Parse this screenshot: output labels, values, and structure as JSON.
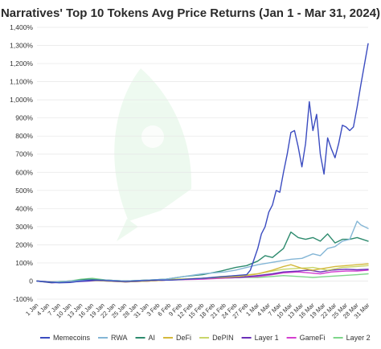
{
  "chart_data": {
    "type": "line",
    "title": "Narratives' Top 10 Tokens Avg Price Returns (Jan 1 - Mar 31, 2024)",
    "xlabel": "",
    "ylabel": "",
    "ylim": [
      -100,
      1400
    ],
    "yticks": [
      -100,
      0,
      100,
      200,
      300,
      400,
      500,
      600,
      700,
      800,
      900,
      1000,
      1100,
      1200,
      1300,
      1400
    ],
    "ytick_labels": [
      "-100%",
      "0",
      "100%",
      "200%",
      "300%",
      "400%",
      "500%",
      "600%",
      "700%",
      "800%",
      "900%",
      "1,000%",
      "1,100%",
      "1,200%",
      "1,300%",
      "1,400%"
    ],
    "x_range": [
      "2024-01-01",
      "2024-03-31"
    ],
    "xticks": [
      "2024-01-01",
      "2024-01-04",
      "2024-01-07",
      "2024-01-10",
      "2024-01-13",
      "2024-01-16",
      "2024-01-19",
      "2024-01-22",
      "2024-01-25",
      "2024-01-28",
      "2024-01-31",
      "2024-02-03",
      "2024-02-06",
      "2024-02-09",
      "2024-02-12",
      "2024-02-15",
      "2024-02-18",
      "2024-02-21",
      "2024-02-24",
      "2024-02-27",
      "2024-03-01",
      "2024-03-04",
      "2024-03-07",
      "2024-03-10",
      "2024-03-13",
      "2024-03-16",
      "2024-03-19",
      "2024-03-22",
      "2024-03-25",
      "2024-03-28",
      "2024-03-31"
    ],
    "xtick_labels": [
      "1 Jan",
      "4 Jan",
      "7 Jan",
      "10 Jan",
      "13 Jan",
      "16 Jan",
      "19 Jan",
      "22 Jan",
      "25 Jan",
      "28 Jan",
      "31 Jan",
      "3 Feb",
      "6 Feb",
      "9 Feb",
      "12 Feb",
      "15 Feb",
      "18 Feb",
      "21 Feb",
      "24 Feb",
      "27 Feb",
      "1 Mar",
      "4 Mar",
      "7 Mar",
      "10 Mar",
      "13 Mar",
      "16 Mar",
      "19 Mar",
      "22 Mar",
      "25 Mar",
      "28 Mar",
      "31 Mar"
    ],
    "grid": true,
    "legend_position": "bottom",
    "series": [
      {
        "name": "Memecoins",
        "color": "#3b4cc0",
        "points": [
          [
            "2024-01-01",
            0
          ],
          [
            "2024-01-04",
            -5
          ],
          [
            "2024-01-07",
            -10
          ],
          [
            "2024-01-10",
            -8
          ],
          [
            "2024-01-13",
            0
          ],
          [
            "2024-01-16",
            5
          ],
          [
            "2024-01-19",
            3
          ],
          [
            "2024-01-22",
            0
          ],
          [
            "2024-01-25",
            -3
          ],
          [
            "2024-01-28",
            0
          ],
          [
            "2024-01-31",
            3
          ],
          [
            "2024-02-03",
            5
          ],
          [
            "2024-02-06",
            5
          ],
          [
            "2024-02-09",
            8
          ],
          [
            "2024-02-12",
            12
          ],
          [
            "2024-02-15",
            15
          ],
          [
            "2024-02-18",
            20
          ],
          [
            "2024-02-21",
            25
          ],
          [
            "2024-02-24",
            30
          ],
          [
            "2024-02-27",
            35
          ],
          [
            "2024-02-28",
            60
          ],
          [
            "2024-02-29",
            120
          ],
          [
            "2024-03-01",
            180
          ],
          [
            "2024-03-02",
            260
          ],
          [
            "2024-03-03",
            300
          ],
          [
            "2024-03-04",
            380
          ],
          [
            "2024-03-05",
            420
          ],
          [
            "2024-03-06",
            500
          ],
          [
            "2024-03-07",
            490
          ],
          [
            "2024-03-08",
            600
          ],
          [
            "2024-03-09",
            700
          ],
          [
            "2024-03-10",
            820
          ],
          [
            "2024-03-11",
            830
          ],
          [
            "2024-03-12",
            740
          ],
          [
            "2024-03-13",
            630
          ],
          [
            "2024-03-14",
            760
          ],
          [
            "2024-03-15",
            990
          ],
          [
            "2024-03-16",
            830
          ],
          [
            "2024-03-17",
            920
          ],
          [
            "2024-03-18",
            700
          ],
          [
            "2024-03-19",
            590
          ],
          [
            "2024-03-20",
            790
          ],
          [
            "2024-03-21",
            730
          ],
          [
            "2024-03-22",
            680
          ],
          [
            "2024-03-23",
            760
          ],
          [
            "2024-03-24",
            860
          ],
          [
            "2024-03-25",
            850
          ],
          [
            "2024-03-26",
            830
          ],
          [
            "2024-03-27",
            850
          ],
          [
            "2024-03-28",
            960
          ],
          [
            "2024-03-29",
            1080
          ],
          [
            "2024-03-31",
            1310
          ]
        ]
      },
      {
        "name": "RWA",
        "color": "#84b6d6",
        "points": [
          [
            "2024-01-01",
            0
          ],
          [
            "2024-01-05",
            -5
          ],
          [
            "2024-01-10",
            0
          ],
          [
            "2024-01-15",
            5
          ],
          [
            "2024-01-20",
            5
          ],
          [
            "2024-01-25",
            0
          ],
          [
            "2024-01-31",
            5
          ],
          [
            "2024-02-05",
            10
          ],
          [
            "2024-02-10",
            25
          ],
          [
            "2024-02-15",
            40
          ],
          [
            "2024-02-18",
            45
          ],
          [
            "2024-02-21",
            50
          ],
          [
            "2024-02-24",
            60
          ],
          [
            "2024-02-27",
            75
          ],
          [
            "2024-03-01",
            90
          ],
          [
            "2024-03-04",
            100
          ],
          [
            "2024-03-07",
            110
          ],
          [
            "2024-03-10",
            120
          ],
          [
            "2024-03-13",
            125
          ],
          [
            "2024-03-16",
            150
          ],
          [
            "2024-03-18",
            140
          ],
          [
            "2024-03-20",
            180
          ],
          [
            "2024-03-22",
            190
          ],
          [
            "2024-03-24",
            220
          ],
          [
            "2024-03-26",
            230
          ],
          [
            "2024-03-28",
            330
          ],
          [
            "2024-03-29",
            310
          ],
          [
            "2024-03-31",
            290
          ]
        ]
      },
      {
        "name": "AI",
        "color": "#2e8b6e",
        "points": [
          [
            "2024-01-01",
            0
          ],
          [
            "2024-01-05",
            -8
          ],
          [
            "2024-01-10",
            0
          ],
          [
            "2024-01-15",
            10
          ],
          [
            "2024-01-20",
            5
          ],
          [
            "2024-01-25",
            0
          ],
          [
            "2024-01-31",
            5
          ],
          [
            "2024-02-05",
            10
          ],
          [
            "2024-02-10",
            25
          ],
          [
            "2024-02-15",
            35
          ],
          [
            "2024-02-20",
            55
          ],
          [
            "2024-02-24",
            75
          ],
          [
            "2024-02-27",
            85
          ],
          [
            "2024-03-01",
            110
          ],
          [
            "2024-03-03",
            140
          ],
          [
            "2024-03-05",
            130
          ],
          [
            "2024-03-08",
            180
          ],
          [
            "2024-03-10",
            270
          ],
          [
            "2024-03-12",
            240
          ],
          [
            "2024-03-14",
            230
          ],
          [
            "2024-03-16",
            240
          ],
          [
            "2024-03-18",
            220
          ],
          [
            "2024-03-20",
            260
          ],
          [
            "2024-03-22",
            210
          ],
          [
            "2024-03-24",
            230
          ],
          [
            "2024-03-26",
            230
          ],
          [
            "2024-03-28",
            240
          ],
          [
            "2024-03-31",
            220
          ]
        ]
      },
      {
        "name": "DeFi",
        "color": "#d4b93c",
        "points": [
          [
            "2024-01-01",
            0
          ],
          [
            "2024-01-05",
            -5
          ],
          [
            "2024-01-10",
            0
          ],
          [
            "2024-01-15",
            5
          ],
          [
            "2024-01-20",
            0
          ],
          [
            "2024-01-25",
            -5
          ],
          [
            "2024-01-31",
            0
          ],
          [
            "2024-02-05",
            5
          ],
          [
            "2024-02-10",
            10
          ],
          [
            "2024-02-15",
            15
          ],
          [
            "2024-02-20",
            20
          ],
          [
            "2024-02-25",
            25
          ],
          [
            "2024-03-01",
            40
          ],
          [
            "2024-03-05",
            60
          ],
          [
            "2024-03-08",
            80
          ],
          [
            "2024-03-10",
            90
          ],
          [
            "2024-03-13",
            70
          ],
          [
            "2024-03-16",
            60
          ],
          [
            "2024-03-19",
            70
          ],
          [
            "2024-03-22",
            80
          ],
          [
            "2024-03-25",
            85
          ],
          [
            "2024-03-28",
            90
          ],
          [
            "2024-03-31",
            95
          ]
        ]
      },
      {
        "name": "DePIN",
        "color": "#c9d66b",
        "points": [
          [
            "2024-01-01",
            0
          ],
          [
            "2024-01-05",
            -5
          ],
          [
            "2024-01-10",
            0
          ],
          [
            "2024-01-15",
            5
          ],
          [
            "2024-01-20",
            5
          ],
          [
            "2024-01-25",
            0
          ],
          [
            "2024-01-31",
            5
          ],
          [
            "2024-02-05",
            10
          ],
          [
            "2024-02-10",
            12
          ],
          [
            "2024-02-15",
            15
          ],
          [
            "2024-02-20",
            25
          ],
          [
            "2024-02-25",
            30
          ],
          [
            "2024-03-01",
            40
          ],
          [
            "2024-03-05",
            55
          ],
          [
            "2024-03-08",
            65
          ],
          [
            "2024-03-12",
            70
          ],
          [
            "2024-03-16",
            75
          ],
          [
            "2024-03-20",
            60
          ],
          [
            "2024-03-24",
            75
          ],
          [
            "2024-03-28",
            80
          ],
          [
            "2024-03-31",
            85
          ]
        ]
      },
      {
        "name": "Layer 1",
        "color": "#6a2fb8",
        "points": [
          [
            "2024-01-01",
            0
          ],
          [
            "2024-01-05",
            -10
          ],
          [
            "2024-01-10",
            -5
          ],
          [
            "2024-01-15",
            0
          ],
          [
            "2024-01-20",
            5
          ],
          [
            "2024-01-25",
            -5
          ],
          [
            "2024-01-31",
            0
          ],
          [
            "2024-02-05",
            5
          ],
          [
            "2024-02-10",
            10
          ],
          [
            "2024-02-15",
            15
          ],
          [
            "2024-02-20",
            20
          ],
          [
            "2024-02-25",
            20
          ],
          [
            "2024-03-01",
            30
          ],
          [
            "2024-03-05",
            40
          ],
          [
            "2024-03-08",
            50
          ],
          [
            "2024-03-12",
            55
          ],
          [
            "2024-03-15",
            60
          ],
          [
            "2024-03-18",
            50
          ],
          [
            "2024-03-21",
            60
          ],
          [
            "2024-03-25",
            65
          ],
          [
            "2024-03-28",
            62
          ],
          [
            "2024-03-31",
            65
          ]
        ]
      },
      {
        "name": "GameFi",
        "color": "#d43fd0",
        "points": [
          [
            "2024-01-01",
            0
          ],
          [
            "2024-01-05",
            -5
          ],
          [
            "2024-01-10",
            -3
          ],
          [
            "2024-01-15",
            5
          ],
          [
            "2024-01-20",
            0
          ],
          [
            "2024-01-25",
            -5
          ],
          [
            "2024-01-31",
            0
          ],
          [
            "2024-02-05",
            5
          ],
          [
            "2024-02-10",
            8
          ],
          [
            "2024-02-15",
            10
          ],
          [
            "2024-02-20",
            15
          ],
          [
            "2024-02-25",
            20
          ],
          [
            "2024-03-01",
            25
          ],
          [
            "2024-03-05",
            35
          ],
          [
            "2024-03-08",
            45
          ],
          [
            "2024-03-12",
            50
          ],
          [
            "2024-03-15",
            45
          ],
          [
            "2024-03-18",
            40
          ],
          [
            "2024-03-21",
            50
          ],
          [
            "2024-03-25",
            55
          ],
          [
            "2024-03-28",
            55
          ],
          [
            "2024-03-31",
            60
          ]
        ]
      },
      {
        "name": "Layer 2",
        "color": "#7ed68a",
        "points": [
          [
            "2024-01-01",
            0
          ],
          [
            "2024-01-05",
            -5
          ],
          [
            "2024-01-10",
            0
          ],
          [
            "2024-01-13",
            10
          ],
          [
            "2024-01-16",
            15
          ],
          [
            "2024-01-20",
            5
          ],
          [
            "2024-01-25",
            0
          ],
          [
            "2024-01-31",
            5
          ],
          [
            "2024-02-05",
            5
          ],
          [
            "2024-02-10",
            10
          ],
          [
            "2024-02-15",
            15
          ],
          [
            "2024-02-20",
            15
          ],
          [
            "2024-02-25",
            20
          ],
          [
            "2024-03-01",
            20
          ],
          [
            "2024-03-05",
            25
          ],
          [
            "2024-03-08",
            30
          ],
          [
            "2024-03-12",
            25
          ],
          [
            "2024-03-16",
            20
          ],
          [
            "2024-03-20",
            25
          ],
          [
            "2024-03-24",
            30
          ],
          [
            "2024-03-28",
            35
          ],
          [
            "2024-03-31",
            40
          ]
        ]
      }
    ]
  }
}
